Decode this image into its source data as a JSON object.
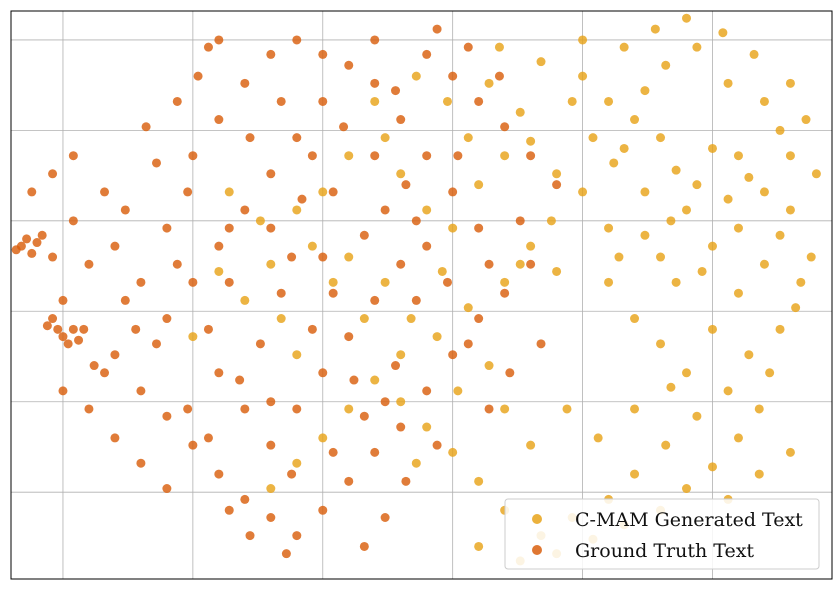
{
  "chart_data": {
    "type": "scatter",
    "title": "",
    "xlabel": "",
    "ylabel": "",
    "xlim": [
      -80,
      78
    ],
    "ylim": [
      -77,
      80
    ],
    "x_ticks": [
      -70,
      -45,
      -20,
      5,
      30,
      55
    ],
    "y_ticks": [
      72,
      47,
      22,
      -3,
      -28,
      -53
    ],
    "tick_labels_visible": false,
    "grid": true,
    "legend_position": "lower-right",
    "series": [
      {
        "name": "C-MAM Generated Text",
        "color": "#e8a31a",
        "points": [
          [
            55,
            42
          ],
          [
            52,
            32
          ],
          [
            58,
            28
          ],
          [
            48,
            36
          ],
          [
            60,
            40
          ],
          [
            45,
            45
          ],
          [
            62,
            34
          ],
          [
            50,
            25
          ],
          [
            40,
            50
          ],
          [
            38,
            42
          ],
          [
            30,
            62
          ],
          [
            35,
            55
          ],
          [
            42,
            58
          ],
          [
            28,
            55
          ],
          [
            46,
            65
          ],
          [
            52,
            70
          ],
          [
            58,
            60
          ],
          [
            65,
            55
          ],
          [
            68,
            47
          ],
          [
            70,
            40
          ],
          [
            65,
            30
          ],
          [
            60,
            20
          ],
          [
            55,
            15
          ],
          [
            45,
            12
          ],
          [
            35,
            20
          ],
          [
            30,
            30
          ],
          [
            25,
            35
          ],
          [
            20,
            44
          ],
          [
            18,
            52
          ],
          [
            12,
            60
          ],
          [
            15,
            40
          ],
          [
            10,
            32
          ],
          [
            5,
            20
          ],
          [
            0,
            25
          ],
          [
            -5,
            35
          ],
          [
            -8,
            45
          ],
          [
            -10,
            55
          ],
          [
            -15,
            40
          ],
          [
            -20,
            30
          ],
          [
            -25,
            25
          ],
          [
            -22,
            15
          ],
          [
            -18,
            5
          ],
          [
            -12,
            -5
          ],
          [
            -5,
            -15
          ],
          [
            2,
            -10
          ],
          [
            8,
            -2
          ],
          [
            15,
            5
          ],
          [
            20,
            15
          ],
          [
            25,
            8
          ],
          [
            35,
            5
          ],
          [
            40,
            -5
          ],
          [
            45,
            -12
          ],
          [
            50,
            -20
          ],
          [
            55,
            -8
          ],
          [
            60,
            2
          ],
          [
            65,
            10
          ],
          [
            68,
            18
          ],
          [
            70,
            25
          ],
          [
            72,
            5
          ],
          [
            68,
            -8
          ],
          [
            62,
            -15
          ],
          [
            58,
            -25
          ],
          [
            52,
            -32
          ],
          [
            46,
            -40
          ],
          [
            40,
            -48
          ],
          [
            35,
            -55
          ],
          [
            28,
            -60
          ],
          [
            22,
            -65
          ],
          [
            15,
            -58
          ],
          [
            10,
            -50
          ],
          [
            5,
            -42
          ],
          [
            0,
            -35
          ],
          [
            -5,
            -28
          ],
          [
            -10,
            -22
          ],
          [
            -15,
            -30
          ],
          [
            -20,
            -38
          ],
          [
            -25,
            -45
          ],
          [
            -30,
            -52
          ],
          [
            10,
            -68
          ],
          [
            18,
            -72
          ],
          [
            25,
            -70
          ],
          [
            32,
            -66
          ],
          [
            38,
            -62
          ],
          [
            45,
            -58
          ],
          [
            50,
            -52
          ],
          [
            55,
            -46
          ],
          [
            60,
            -38
          ],
          [
            64,
            -30
          ],
          [
            48,
            5
          ],
          [
            42,
            18
          ],
          [
            36,
            38
          ],
          [
            32,
            45
          ],
          [
            24,
            22
          ],
          [
            18,
            10
          ],
          [
            12,
            -18
          ],
          [
            6,
            -25
          ],
          [
            -2,
            -45
          ],
          [
            8,
            45
          ],
          [
            4,
            55
          ],
          [
            -2,
            62
          ],
          [
            14,
            70
          ],
          [
            22,
            66
          ],
          [
            30,
            72
          ],
          [
            38,
            70
          ],
          [
            44,
            75
          ],
          [
            50,
            78
          ],
          [
            57,
            74
          ],
          [
            63,
            68
          ],
          [
            70,
            60
          ],
          [
            73,
            50
          ],
          [
            75,
            35
          ],
          [
            74,
            12
          ],
          [
            71,
            -2
          ],
          [
            66,
            -20
          ],
          [
            -30,
            10
          ],
          [
            -28,
            -5
          ],
          [
            -35,
            0
          ],
          [
            -40,
            8
          ],
          [
            -32,
            22
          ],
          [
            -38,
            30
          ],
          [
            -45,
            -10
          ],
          [
            -25,
            -15
          ],
          [
            -15,
            12
          ],
          [
            -8,
            5
          ],
          [
            -3,
            -5
          ],
          [
            3,
            8
          ],
          [
            27,
            -30
          ],
          [
            33,
            -38
          ],
          [
            40,
            -30
          ],
          [
            47,
            -24
          ],
          [
            20,
            -40
          ],
          [
            15,
            -30
          ],
          [
            58,
            -55
          ],
          [
            64,
            -48
          ],
          [
            70,
            -42
          ],
          [
            42,
            30
          ],
          [
            47,
            22
          ],
          [
            53,
            8
          ],
          [
            37,
            12
          ]
        ]
      },
      {
        "name": "Ground Truth Text",
        "color": "#d95f0e",
        "points": [
          [
            -60,
            15
          ],
          [
            -65,
            10
          ],
          [
            -55,
            5
          ],
          [
            -50,
            20
          ],
          [
            -58,
            25
          ],
          [
            -62,
            30
          ],
          [
            -68,
            22
          ],
          [
            -72,
            12
          ],
          [
            -70,
            0
          ],
          [
            -66,
            -8
          ],
          [
            -60,
            -15
          ],
          [
            -55,
            -25
          ],
          [
            -50,
            -32
          ],
          [
            -45,
            -40
          ],
          [
            -40,
            -48
          ],
          [
            -35,
            -55
          ],
          [
            -30,
            -60
          ],
          [
            -25,
            -65
          ],
          [
            -20,
            -58
          ],
          [
            -15,
            -50
          ],
          [
            -10,
            -42
          ],
          [
            -5,
            -35
          ],
          [
            0,
            -25
          ],
          [
            5,
            -15
          ],
          [
            10,
            -5
          ],
          [
            15,
            2
          ],
          [
            20,
            10
          ],
          [
            10,
            20
          ],
          [
            5,
            30
          ],
          [
            0,
            40
          ],
          [
            -5,
            50
          ],
          [
            -10,
            60
          ],
          [
            -15,
            65
          ],
          [
            -20,
            55
          ],
          [
            -25,
            45
          ],
          [
            -30,
            35
          ],
          [
            -35,
            25
          ],
          [
            -40,
            15
          ],
          [
            -45,
            5
          ],
          [
            -50,
            -5
          ],
          [
            -40,
            -20
          ],
          [
            -35,
            -30
          ],
          [
            -30,
            -40
          ],
          [
            -25,
            -30
          ],
          [
            -20,
            -20
          ],
          [
            -15,
            -10
          ],
          [
            -10,
            0
          ],
          [
            -5,
            10
          ],
          [
            0,
            15
          ],
          [
            -45,
            40
          ],
          [
            -40,
            50
          ],
          [
            -35,
            60
          ],
          [
            -30,
            68
          ],
          [
            -25,
            72
          ],
          [
            -20,
            68
          ],
          [
            -10,
            72
          ],
          [
            0,
            68
          ],
          [
            5,
            62
          ],
          [
            10,
            55
          ],
          [
            15,
            48
          ],
          [
            20,
            40
          ],
          [
            25,
            32
          ],
          [
            -42,
            70
          ],
          [
            -40,
            72
          ],
          [
            -68,
            40
          ],
          [
            -72,
            35
          ],
          [
            -76,
            30
          ],
          [
            -50,
            -52
          ],
          [
            -55,
            -45
          ],
          [
            -60,
            -38
          ],
          [
            -65,
            -30
          ],
          [
            -70,
            -25
          ],
          [
            -48,
            10
          ],
          [
            -52,
            -12
          ],
          [
            -42,
            -8
          ],
          [
            -38,
            5
          ],
          [
            -32,
            -12
          ],
          [
            -28,
            2
          ],
          [
            -22,
            -8
          ],
          [
            -18,
            2
          ],
          [
            -12,
            18
          ],
          [
            -8,
            25
          ],
          [
            -2,
            22
          ],
          [
            4,
            5
          ],
          [
            8,
            -12
          ],
          [
            2,
            -40
          ],
          [
            -4,
            -50
          ],
          [
            -8,
            -60
          ],
          [
            -12,
            -68
          ],
          [
            12,
            -30
          ],
          [
            16,
            -20
          ],
          [
            22,
            -12
          ],
          [
            -28,
            55
          ],
          [
            -22,
            40
          ],
          [
            -18,
            30
          ],
          [
            -10,
            40
          ],
          [
            -4,
            32
          ],
          [
            -34,
            45
          ],
          [
            -46,
            30
          ],
          [
            -52,
            38
          ],
          [
            -58,
            0
          ],
          [
            -64,
            -18
          ],
          [
            -56,
            -8
          ],
          [
            -30,
            20
          ],
          [
            -24,
            28
          ],
          [
            -16,
            48
          ],
          [
            -6,
            58
          ],
          [
            2,
            75
          ],
          [
            8,
            70
          ],
          [
            14,
            62
          ],
          [
            -36,
            -22
          ],
          [
            -30,
            -28
          ],
          [
            -26,
            -48
          ],
          [
            -18,
            -42
          ],
          [
            -12,
            -32
          ],
          [
            -6,
            -18
          ],
          [
            -46,
            -30
          ],
          [
            -42,
            -38
          ],
          [
            -38,
            -58
          ],
          [
            -34,
            -65
          ],
          [
            -27,
            -70
          ],
          [
            -74,
            18
          ],
          [
            -78,
            15
          ],
          [
            -77,
            17
          ],
          [
            -76,
            13
          ],
          [
            -79,
            14
          ],
          [
            -75,
            16
          ],
          [
            -72,
            -5
          ],
          [
            -70,
            -10
          ],
          [
            -68,
            -8
          ],
          [
            -71,
            -8
          ],
          [
            -69,
            -12
          ],
          [
            -73,
            -7
          ],
          [
            -67,
            -11
          ],
          [
            -62,
            -20
          ],
          [
            -54,
            48
          ],
          [
            -48,
            55
          ],
          [
            -44,
            62
          ],
          [
            -38,
            20
          ],
          [
            -26,
            12
          ],
          [
            -20,
            12
          ],
          [
            -14,
            -22
          ],
          [
            -8,
            -28
          ],
          [
            -2,
            0
          ],
          [
            6,
            40
          ],
          [
            12,
            10
          ],
          [
            18,
            22
          ]
        ]
      }
    ]
  }
}
